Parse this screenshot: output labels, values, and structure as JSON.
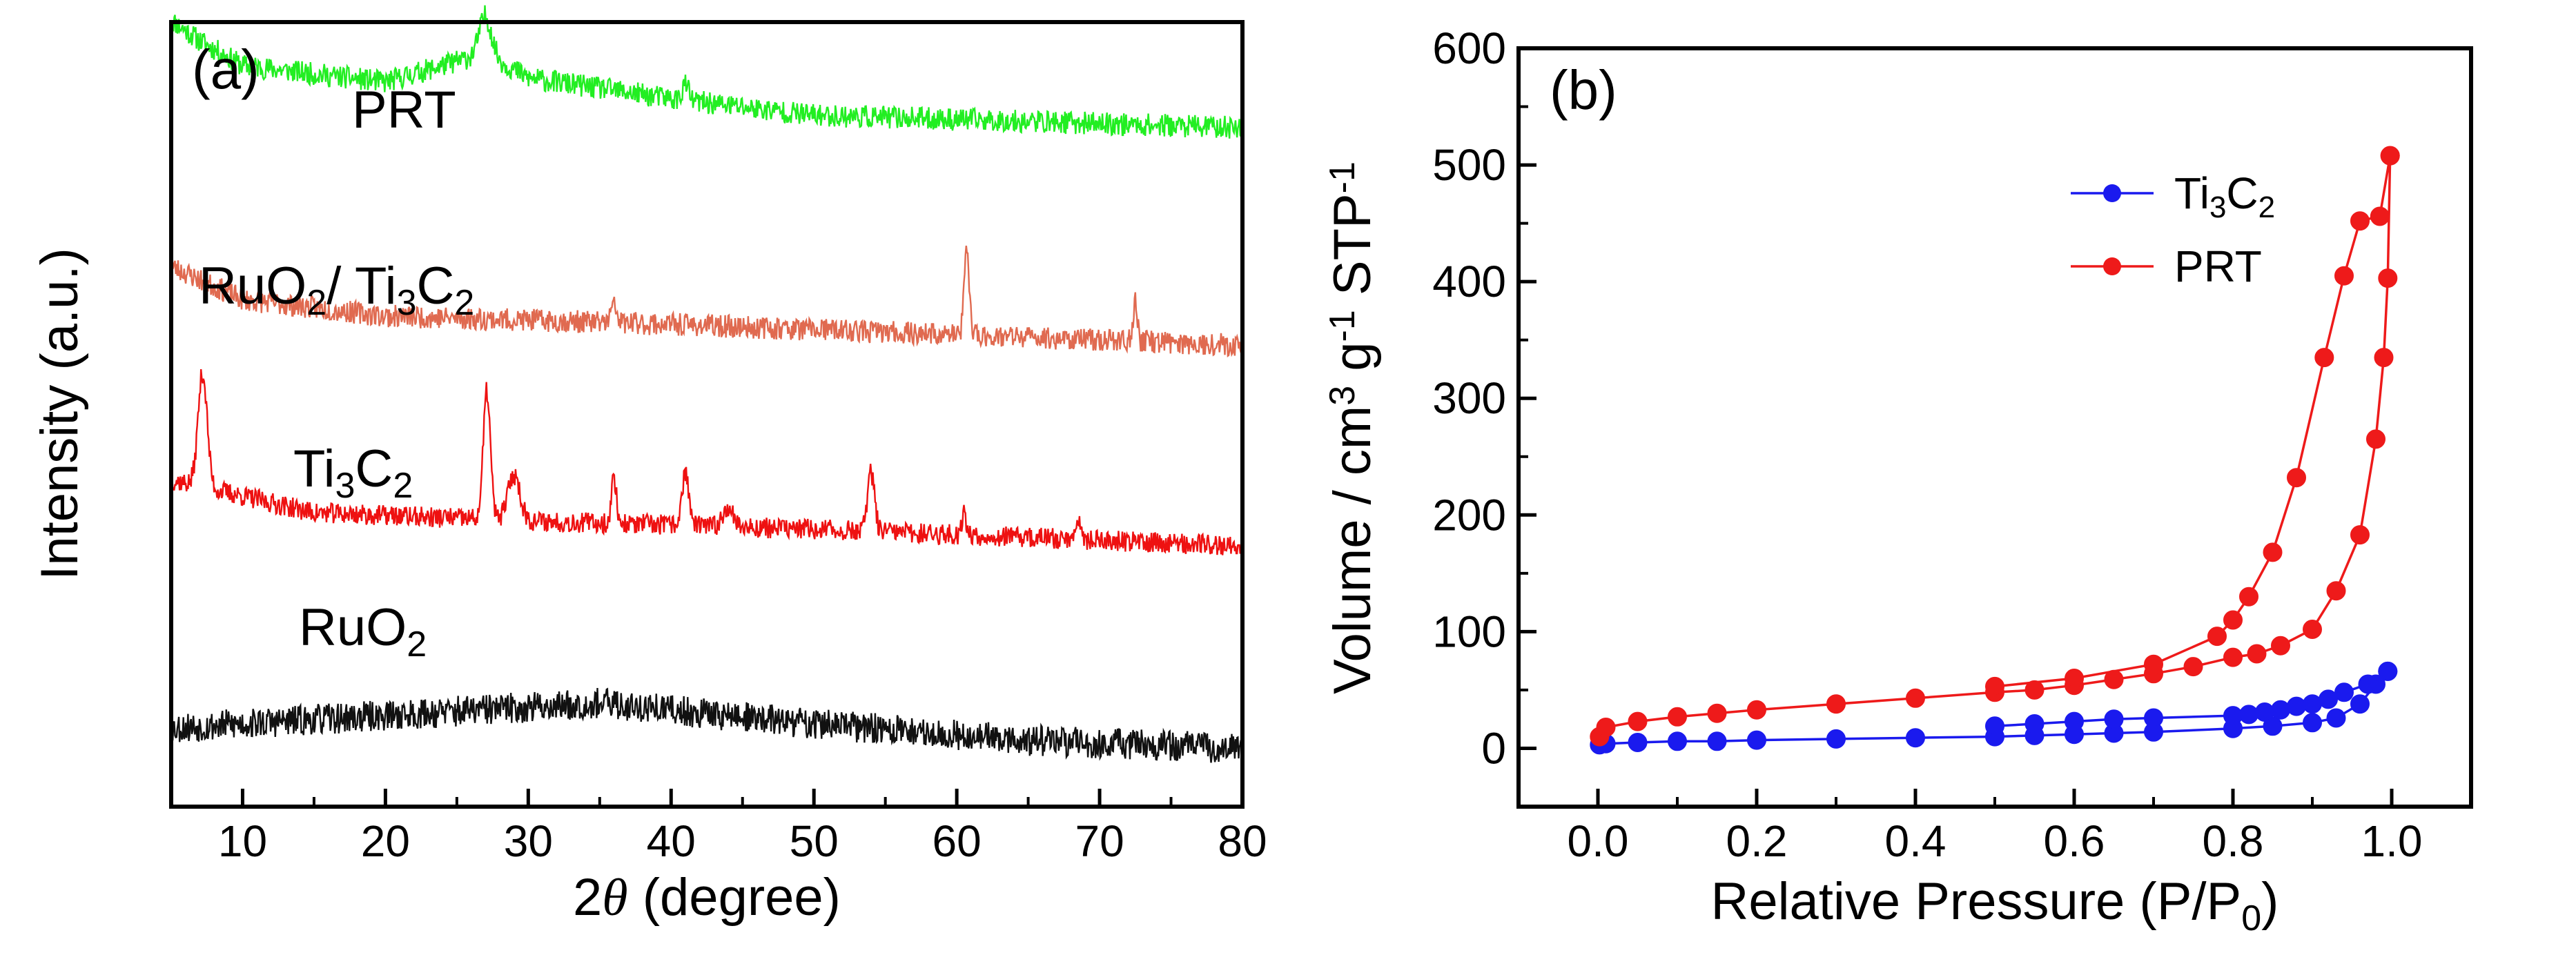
{
  "chart_data": [
    {
      "panel": "(a)",
      "type": "line",
      "title": "",
      "xlabel_prefix": "2",
      "xlabel_symbol": "θ",
      "xlabel_suffix": " (degree)",
      "ylabel": "Intensity (a.u.)",
      "xlim": [
        5,
        80
      ],
      "xticks": [
        "10",
        "20",
        "30",
        "40",
        "50",
        "60",
        "70",
        "80"
      ],
      "yticks_shown": false,
      "series": [
        {
          "name": "PRT",
          "label": {
            "text": "PRT",
            "sub": ""
          },
          "color": "#22ee22",
          "baseline": 3.0,
          "noise": 0.11,
          "seed": 11,
          "shape": [
            [
              5,
              0.52
            ],
            [
              7,
              0.42
            ],
            [
              10,
              0.3
            ],
            [
              20,
              0.22
            ],
            [
              27,
              0.36
            ],
            [
              30,
              0.24
            ],
            [
              40,
              0.14
            ],
            [
              50,
              0.06
            ],
            [
              80,
              0.0
            ]
          ],
          "peaks": [
            [
              27,
              0.18,
              0.6
            ],
            [
              41,
              0.08,
              0.3
            ]
          ]
        },
        {
          "name": "RuO2/Ti3C2",
          "label": {
            "parts": [
              [
                "RuO",
                ""
              ],
              [
                "2",
                "sub"
              ],
              [
                "/ Ti",
                ""
              ],
              [
                "3",
                "sub"
              ],
              [
                "C",
                ""
              ],
              [
                "2",
                "sub"
              ]
            ]
          },
          "color": "#e06a50",
          "baseline": 1.95,
          "noise": 0.11,
          "seed": 23,
          "shape": [
            [
              5,
              0.38
            ],
            [
              10,
              0.22
            ],
            [
              20,
              0.14
            ],
            [
              40,
              0.1
            ],
            [
              60,
              0.05
            ],
            [
              80,
              0.0
            ]
          ],
          "peaks": [
            [
              60.7,
              0.42,
              0.25
            ],
            [
              72.5,
              0.2,
              0.2
            ],
            [
              36,
              0.08,
              0.3
            ]
          ]
        },
        {
          "name": "Ti3C2",
          "label": {
            "parts": [
              [
                "Ti",
                ""
              ],
              [
                "3",
                "sub"
              ],
              [
                "C",
                ""
              ],
              [
                "2",
                "sub"
              ]
            ]
          },
          "color": "#ee1111",
          "baseline": 0.98,
          "noise": 0.1,
          "seed": 37,
          "shape": [
            [
              5,
              0.32
            ],
            [
              15,
              0.16
            ],
            [
              30,
              0.12
            ],
            [
              50,
              0.08
            ],
            [
              80,
              0.0
            ]
          ],
          "peaks": [
            [
              7.2,
              0.55,
              0.45
            ],
            [
              27.1,
              0.62,
              0.35
            ],
            [
              29,
              0.22,
              0.6
            ],
            [
              36,
              0.22,
              0.25
            ],
            [
              41,
              0.25,
              0.35
            ],
            [
              44,
              0.1,
              0.5
            ],
            [
              54,
              0.28,
              0.35
            ],
            [
              60.5,
              0.12,
              0.2
            ],
            [
              68.5,
              0.1,
              0.3
            ]
          ]
        },
        {
          "name": "RuO2",
          "label": {
            "parts": [
              [
                "RuO",
                ""
              ],
              [
                "2",
                "sub"
              ]
            ]
          },
          "color": "#111111",
          "baseline": 0.0,
          "noise": 0.15,
          "seed": 53,
          "shape": [
            [
              5,
              0.1
            ],
            [
              20,
              0.16
            ],
            [
              35,
              0.22
            ],
            [
              50,
              0.12
            ],
            [
              65,
              0.04
            ],
            [
              80,
              0.0
            ]
          ],
          "peaks": []
        }
      ]
    },
    {
      "panel": "(b)",
      "type": "line",
      "title": "",
      "xlabel": "Relative Pressure (P/P",
      "xlabel_sub": "0",
      "xlabel_end": ")",
      "ylabel_parts": [
        "Volume / cm",
        "3",
        " g",
        "-1",
        " STP",
        "-1"
      ],
      "xlim": [
        -0.1,
        1.1
      ],
      "ylim": [
        -50,
        600
      ],
      "xticks": [
        0.0,
        0.2,
        0.4,
        0.6,
        0.8,
        1.0
      ],
      "xtick_labels": [
        "0.0",
        "0.2",
        "0.4",
        "0.6",
        "0.8",
        "1.0"
      ],
      "yticks": [
        0,
        100,
        200,
        300,
        400,
        500,
        600
      ],
      "ytick_labels": [
        "0",
        "100",
        "200",
        "300",
        "400",
        "500",
        "600"
      ],
      "legend": "top-right",
      "series": [
        {
          "name": "Ti3C2",
          "legend_parts": [
            [
              "Ti",
              ""
            ],
            [
              "3",
              "sub"
            ],
            [
              "C",
              ""
            ],
            [
              "2",
              "sub"
            ]
          ],
          "color": "#1a1aee",
          "adsorption": [
            [
              0.002,
              3
            ],
            [
              0.01,
              4
            ],
            [
              0.05,
              5
            ],
            [
              0.1,
              6
            ],
            [
              0.15,
              6
            ],
            [
              0.2,
              7
            ],
            [
              0.3,
              8
            ],
            [
              0.4,
              9
            ],
            [
              0.5,
              10
            ],
            [
              0.55,
              11
            ],
            [
              0.6,
              12
            ],
            [
              0.65,
              13
            ],
            [
              0.7,
              14
            ],
            [
              0.8,
              17
            ],
            [
              0.85,
              19
            ],
            [
              0.9,
              22
            ],
            [
              0.93,
              26
            ],
            [
              0.96,
              38
            ],
            [
              0.98,
              55
            ],
            [
              0.995,
              66
            ]
          ],
          "desorption": [
            [
              0.995,
              66
            ],
            [
              0.97,
              55
            ],
            [
              0.94,
              48
            ],
            [
              0.92,
              42
            ],
            [
              0.9,
              38
            ],
            [
              0.88,
              36
            ],
            [
              0.86,
              33
            ],
            [
              0.84,
              31
            ],
            [
              0.82,
              29
            ],
            [
              0.8,
              28
            ],
            [
              0.7,
              26
            ],
            [
              0.65,
              25
            ],
            [
              0.6,
              23
            ],
            [
              0.55,
              21
            ],
            [
              0.5,
              19
            ]
          ]
        },
        {
          "name": "PRT",
          "legend_parts": [
            [
              "PRT",
              ""
            ]
          ],
          "color": "#ee1a1a",
          "adsorption": [
            [
              0.002,
              10
            ],
            [
              0.01,
              18
            ],
            [
              0.05,
              23
            ],
            [
              0.1,
              27
            ],
            [
              0.15,
              30
            ],
            [
              0.2,
              33
            ],
            [
              0.3,
              38
            ],
            [
              0.4,
              43
            ],
            [
              0.5,
              48
            ],
            [
              0.55,
              50
            ],
            [
              0.6,
              54
            ],
            [
              0.65,
              59
            ],
            [
              0.7,
              64
            ],
            [
              0.75,
              70
            ],
            [
              0.8,
              78
            ],
            [
              0.83,
              81
            ],
            [
              0.86,
              88
            ],
            [
              0.9,
              102
            ],
            [
              0.93,
              135
            ],
            [
              0.96,
              183
            ],
            [
              0.98,
              265
            ],
            [
              0.99,
              335
            ],
            [
              0.995,
              403
            ],
            [
              0.998,
              508
            ]
          ],
          "desorption": [
            [
              0.998,
              508
            ],
            [
              0.985,
              456
            ],
            [
              0.96,
              452
            ],
            [
              0.94,
              405
            ],
            [
              0.915,
              335
            ],
            [
              0.88,
              232
            ],
            [
              0.85,
              168
            ],
            [
              0.82,
              130
            ],
            [
              0.8,
              110
            ],
            [
              0.78,
              96
            ],
            [
              0.7,
              72
            ],
            [
              0.6,
              60
            ],
            [
              0.5,
              53
            ]
          ]
        }
      ]
    }
  ]
}
